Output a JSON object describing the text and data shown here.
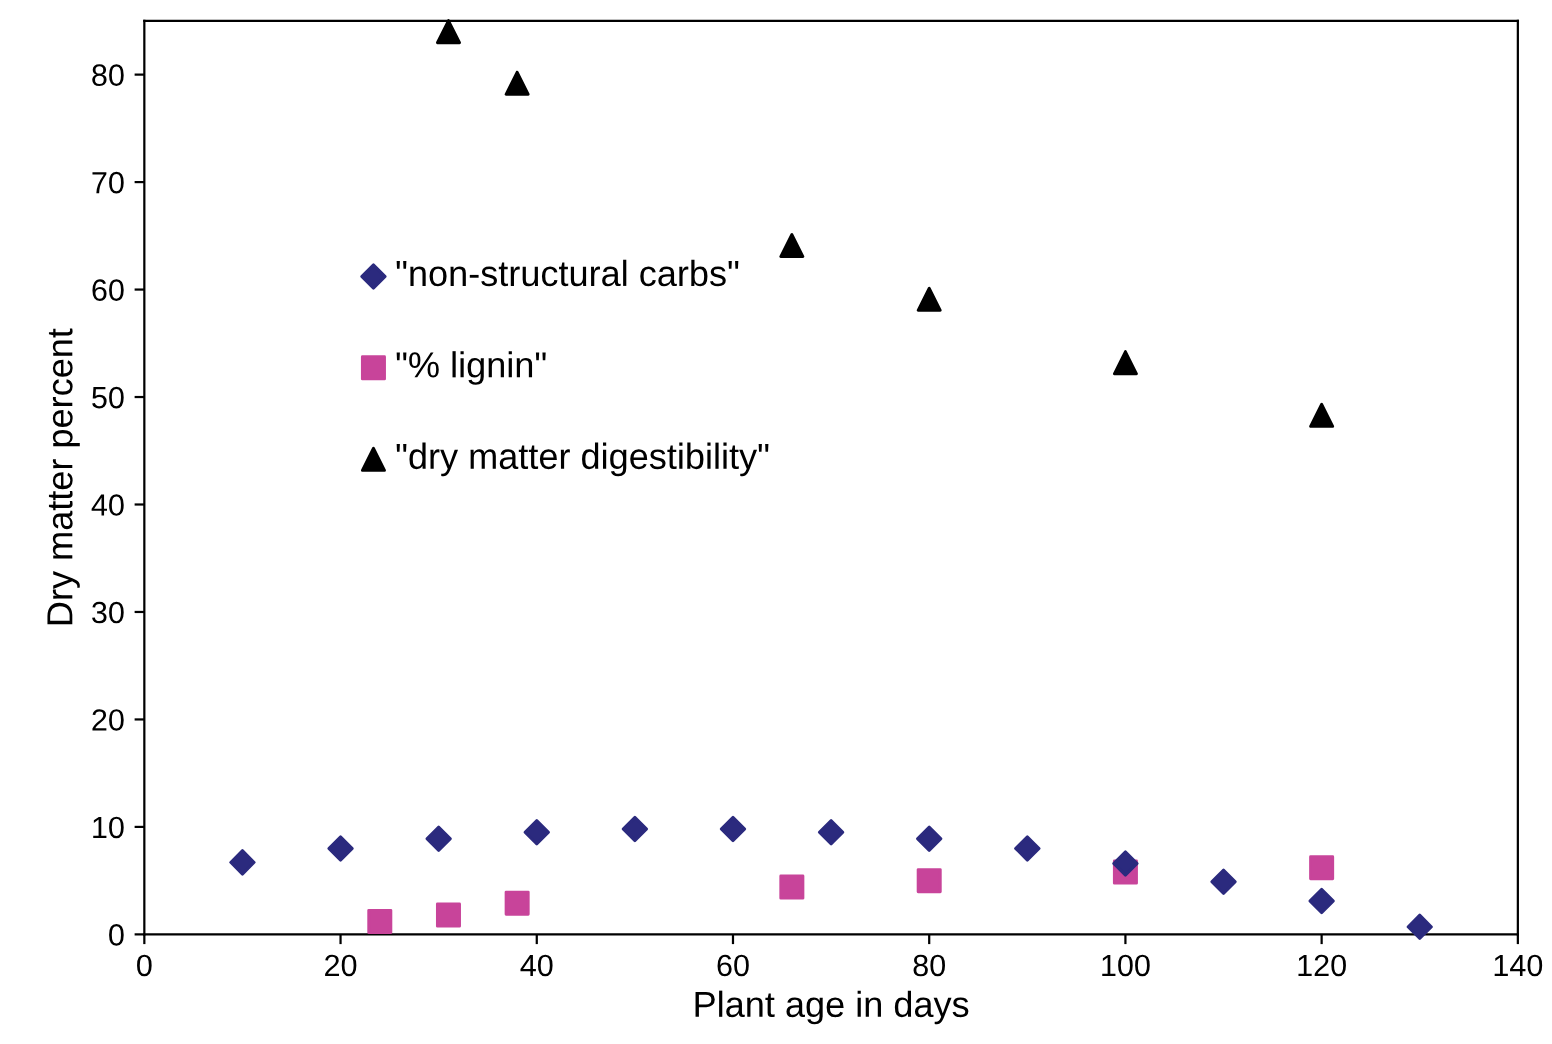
{
  "chart_data": {
    "type": "scatter",
    "xlabel": "Plant age in days",
    "ylabel": "Dry matter percent",
    "xlim": [
      0,
      140
    ],
    "xticks": [
      0,
      20,
      40,
      60,
      80,
      100,
      120,
      140
    ],
    "ylim": [
      0,
      85
    ],
    "yticks": [
      0,
      10,
      20,
      30,
      40,
      50,
      60,
      70,
      80
    ],
    "grid": false,
    "legend": "left",
    "series": [
      {
        "name": "\"non-structural carbs\"",
        "color": "#2b2a7e",
        "marker": "diamond",
        "x": [
          10,
          20,
          30,
          40,
          50,
          60,
          70,
          80,
          90,
          100,
          110,
          120,
          130
        ],
        "values": [
          6.7,
          8.0,
          8.9,
          9.5,
          9.8,
          9.8,
          9.5,
          8.9,
          8.0,
          6.6,
          4.9,
          3.1,
          0.7
        ]
      },
      {
        "name": "\"% lignin\"",
        "color": "#c8449a",
        "marker": "square",
        "x": [
          24,
          31,
          38,
          66,
          80,
          100,
          120
        ],
        "values": [
          1.2,
          1.8,
          2.9,
          4.4,
          5.0,
          5.8,
          6.2
        ]
      },
      {
        "name": "\"dry matter digestibility\"",
        "color": "#000000",
        "marker": "triangle",
        "x": [
          31,
          38,
          66,
          80,
          100,
          120
        ],
        "values": [
          84,
          79.2,
          64.1,
          59.1,
          53.2,
          48.3
        ]
      }
    ]
  }
}
